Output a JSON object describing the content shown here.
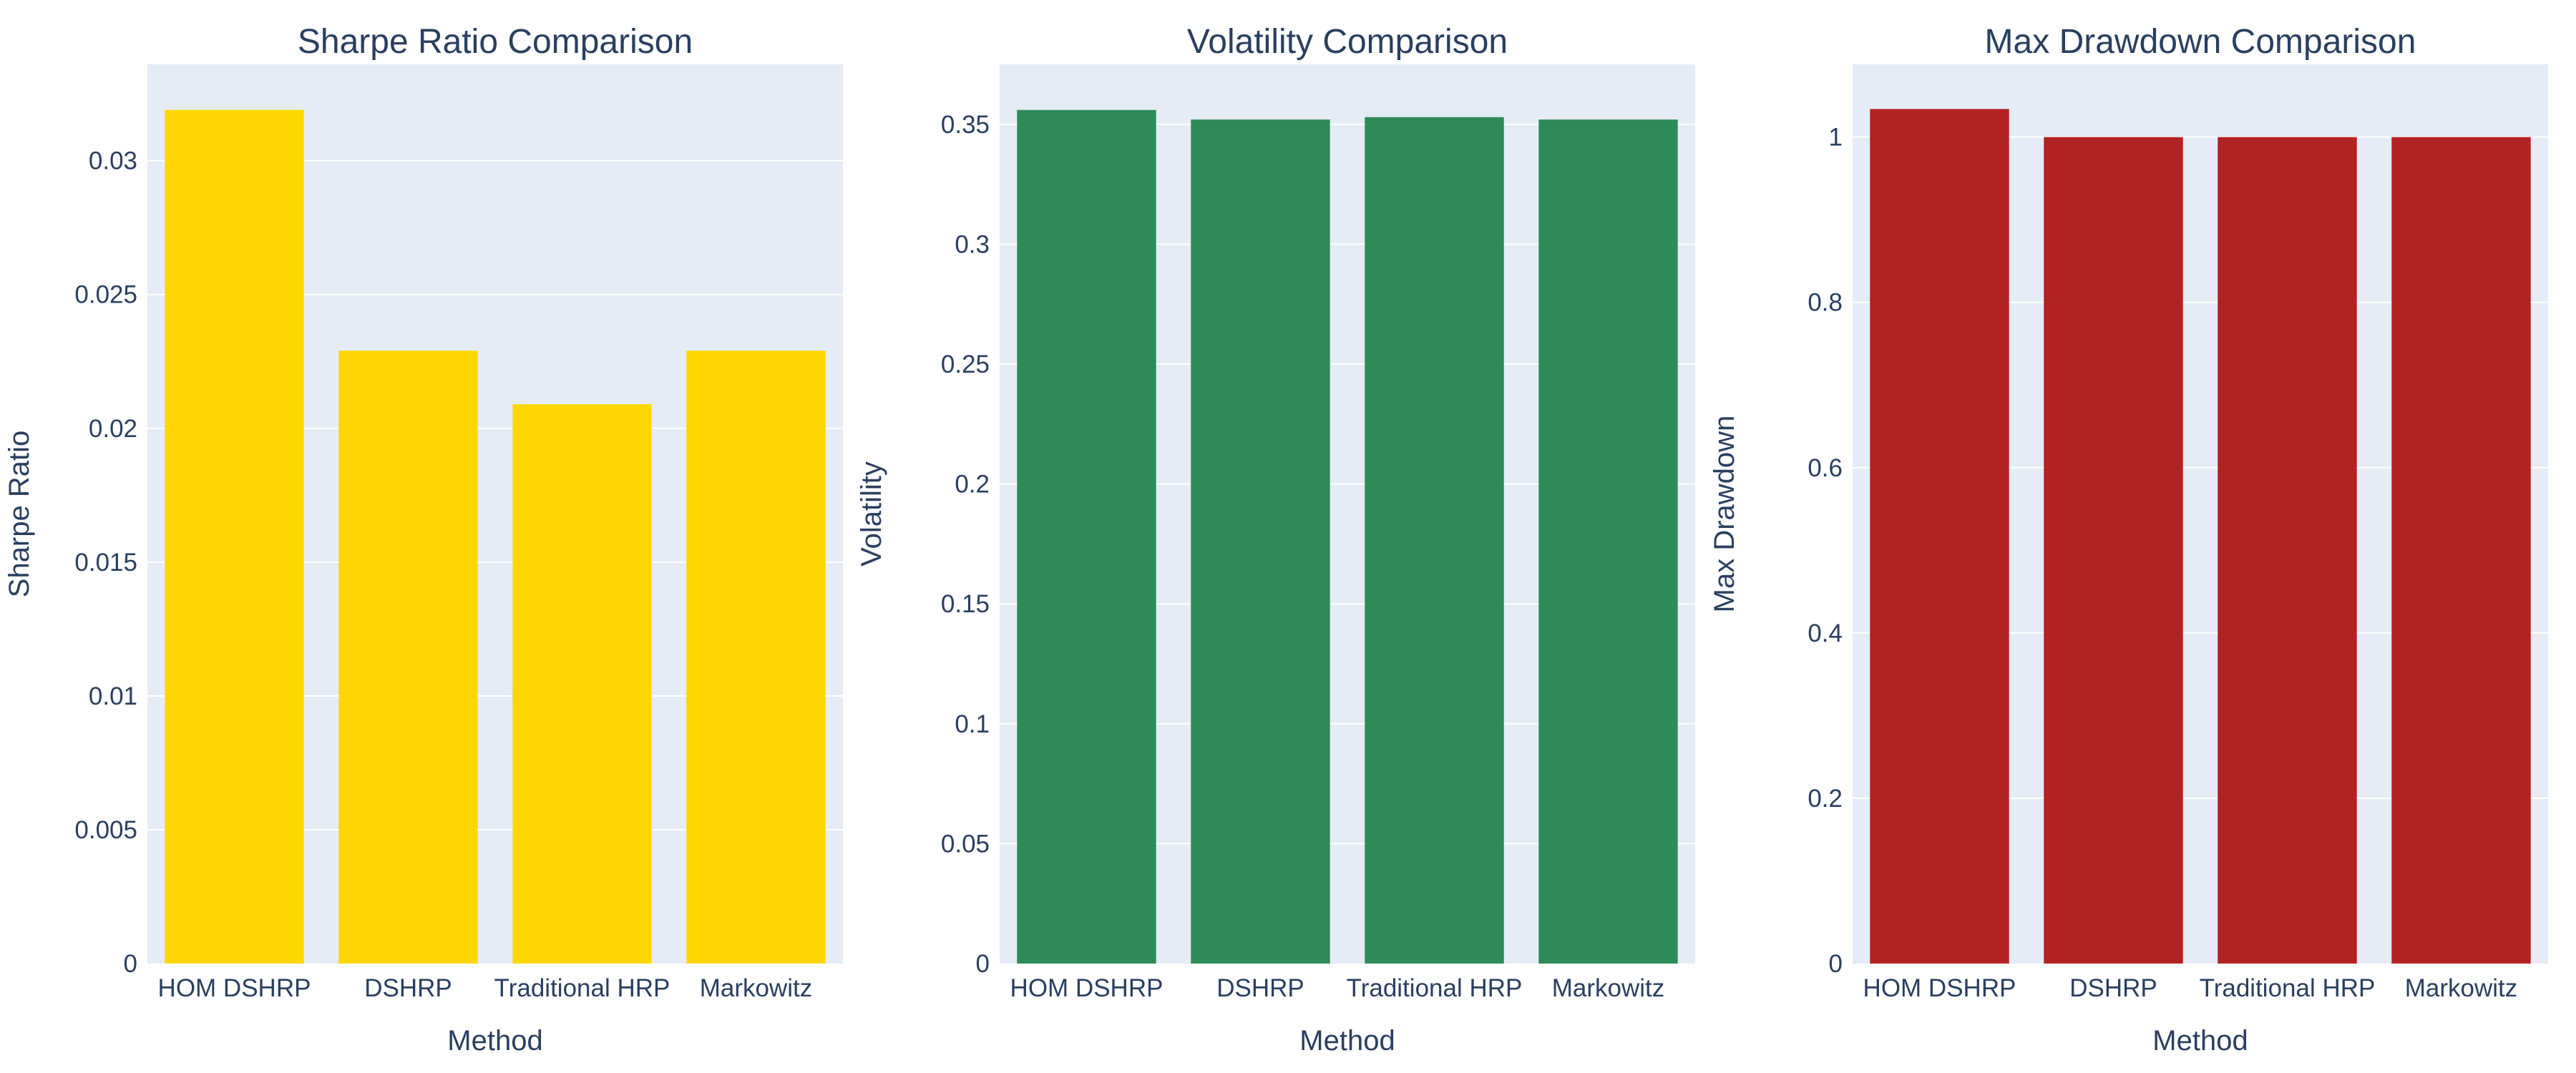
{
  "colors": {
    "plot_bg": "#e5ecf6",
    "grid": "#ffffff",
    "text": "#2a3f5f"
  },
  "chart_data": [
    {
      "type": "bar",
      "title": "Sharpe Ratio Comparison",
      "xlabel": "Method",
      "ylabel": "Sharpe Ratio",
      "categories": [
        "HOM DSHRP",
        "DSHRP",
        "Traditional HRP",
        "Markowitz"
      ],
      "values": [
        0.0319,
        0.0229,
        0.0209,
        0.0229
      ],
      "ylim": [
        0,
        0.0336
      ],
      "yticks": [
        0,
        0.005,
        0.01,
        0.015,
        0.02,
        0.025,
        0.03
      ],
      "ytick_labels": [
        "0",
        "0.005",
        "0.01",
        "0.015",
        "0.02",
        "0.025",
        "0.03"
      ],
      "color": "#ffd700",
      "grid": true
    },
    {
      "type": "bar",
      "title": "Volatility Comparison",
      "xlabel": "Method",
      "ylabel": "Volatility",
      "categories": [
        "HOM DSHRP",
        "DSHRP",
        "Traditional HRP",
        "Markowitz"
      ],
      "values": [
        0.356,
        0.352,
        0.353,
        0.352
      ],
      "ylim": [
        0,
        0.375
      ],
      "yticks": [
        0,
        0.05,
        0.1,
        0.15,
        0.2,
        0.25,
        0.3,
        0.35
      ],
      "ytick_labels": [
        "0",
        "0.05",
        "0.1",
        "0.15",
        "0.2",
        "0.25",
        "0.3",
        "0.35"
      ],
      "color": "#2e8b57",
      "grid": true
    },
    {
      "type": "bar",
      "title": "Max Drawdown Comparison",
      "xlabel": "Method",
      "ylabel": "Max Drawdown",
      "categories": [
        "HOM DSHRP",
        "DSHRP",
        "Traditional HRP",
        "Markowitz"
      ],
      "values": [
        1.034,
        1.0,
        1.0,
        1.0
      ],
      "ylim": [
        0,
        1.088
      ],
      "yticks": [
        0,
        0.2,
        0.4,
        0.6,
        0.8,
        1
      ],
      "ytick_labels": [
        "0",
        "0.2",
        "0.4",
        "0.6",
        "0.8",
        "1"
      ],
      "color": "#b22222",
      "grid": true
    }
  ]
}
